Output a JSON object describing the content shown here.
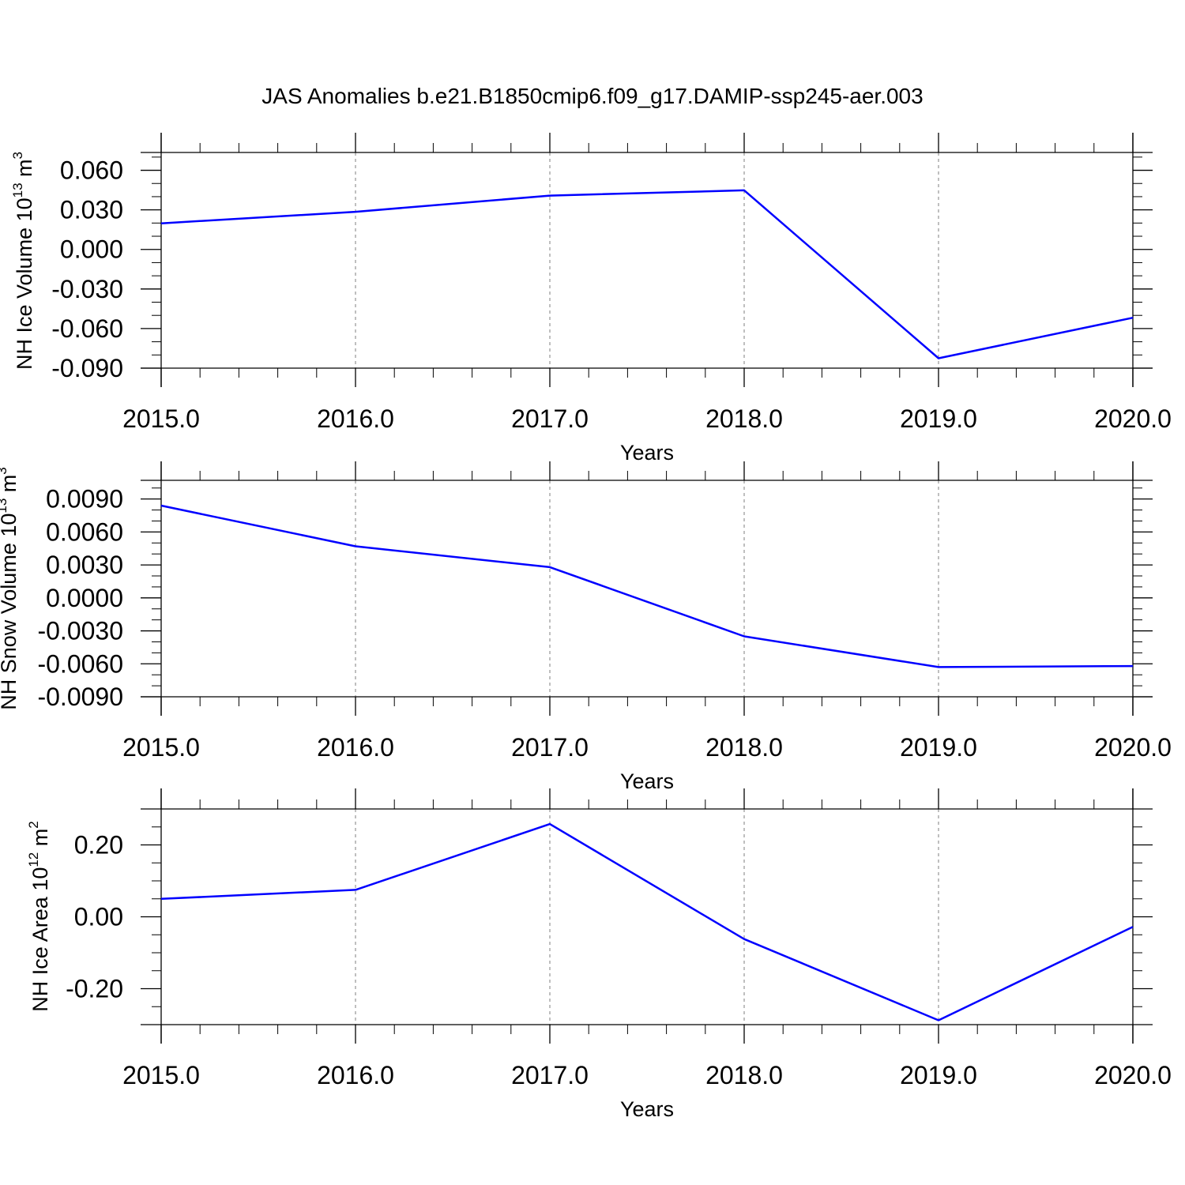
{
  "figure": {
    "title": "JAS Anomalies b.e21.B1850cmip6.f09_g17.DAMIP-ssp245-aer.003"
  },
  "colors": {
    "line": "#0000ff",
    "axis": "#000000",
    "grid": "#7f7f7f"
  },
  "chart_data": [
    {
      "type": "line",
      "ylabel_main": "NH Ice Volume 10",
      "ylabel_exp": "13",
      "ylabel_unit": " m",
      "ylabel_unit_exp": "3",
      "xlabel": "Years",
      "xlim": [
        2015,
        2020
      ],
      "ylim": [
        -0.09,
        0.0735
      ],
      "xticks": [
        2015,
        2016,
        2017,
        2018,
        2019,
        2020
      ],
      "xtick_labels": [
        "2015.0",
        "2016.0",
        "2017.0",
        "2018.0",
        "2019.0",
        "2020.0"
      ],
      "yticks": [
        0.06,
        0.03,
        0.0,
        -0.03,
        -0.06,
        -0.09
      ],
      "ytick_labels": [
        "0.060",
        "0.030",
        "0.000",
        "-0.030",
        "-0.060",
        "-0.090"
      ],
      "yminor_step": 0.01,
      "x": [
        2015,
        2016,
        2017,
        2018,
        2019,
        2020
      ],
      "series": [
        {
          "values": [
            0.0198,
            0.0285,
            0.0408,
            0.0448,
            -0.0825,
            -0.0518
          ]
        }
      ],
      "grid": "vertical dashed at major x ticks"
    },
    {
      "type": "line",
      "ylabel_main": "NH Snow Volume 10",
      "ylabel_exp": "13",
      "ylabel_unit": " m",
      "ylabel_unit_exp": "3",
      "xlabel": "Years",
      "xlim": [
        2015,
        2020
      ],
      "ylim": [
        -0.009,
        0.0107
      ],
      "xticks": [
        2015,
        2016,
        2017,
        2018,
        2019,
        2020
      ],
      "xtick_labels": [
        "2015.0",
        "2016.0",
        "2017.0",
        "2018.0",
        "2019.0",
        "2020.0"
      ],
      "yticks": [
        0.009,
        0.006,
        0.003,
        0.0,
        -0.003,
        -0.006,
        -0.009
      ],
      "ytick_labels": [
        "0.0090",
        "0.0060",
        "0.0030",
        "0.0000",
        "-0.0030",
        "-0.0060",
        "-0.0090"
      ],
      "yminor_step": 0.001,
      "x": [
        2015,
        2016,
        2017,
        2018,
        2019,
        2020
      ],
      "series": [
        {
          "values": [
            0.0084,
            0.0047,
            0.0028,
            -0.0035,
            -0.0063,
            -0.0062
          ]
        }
      ],
      "grid": "vertical dashed at major x ticks"
    },
    {
      "type": "line",
      "ylabel_main": "NH Ice Area 10",
      "ylabel_exp": "12",
      "ylabel_unit": " m",
      "ylabel_unit_exp": "2",
      "xlabel": "Years",
      "xlim": [
        2015,
        2020
      ],
      "ylim": [
        -0.3,
        0.3
      ],
      "xticks": [
        2015,
        2016,
        2017,
        2018,
        2019,
        2020
      ],
      "xtick_labels": [
        "2015.0",
        "2016.0",
        "2017.0",
        "2018.0",
        "2019.0",
        "2020.0"
      ],
      "yticks": [
        0.2,
        0.0,
        -0.2
      ],
      "ytick_labels": [
        "0.20",
        "0.00",
        "-0.20"
      ],
      "yminor_step": 0.05,
      "x": [
        2015,
        2016,
        2017,
        2018,
        2019,
        2020
      ],
      "series": [
        {
          "values": [
            0.05,
            0.075,
            0.258,
            -0.062,
            -0.288,
            -0.028
          ]
        }
      ],
      "grid": "vertical dashed at major x ticks"
    }
  ]
}
